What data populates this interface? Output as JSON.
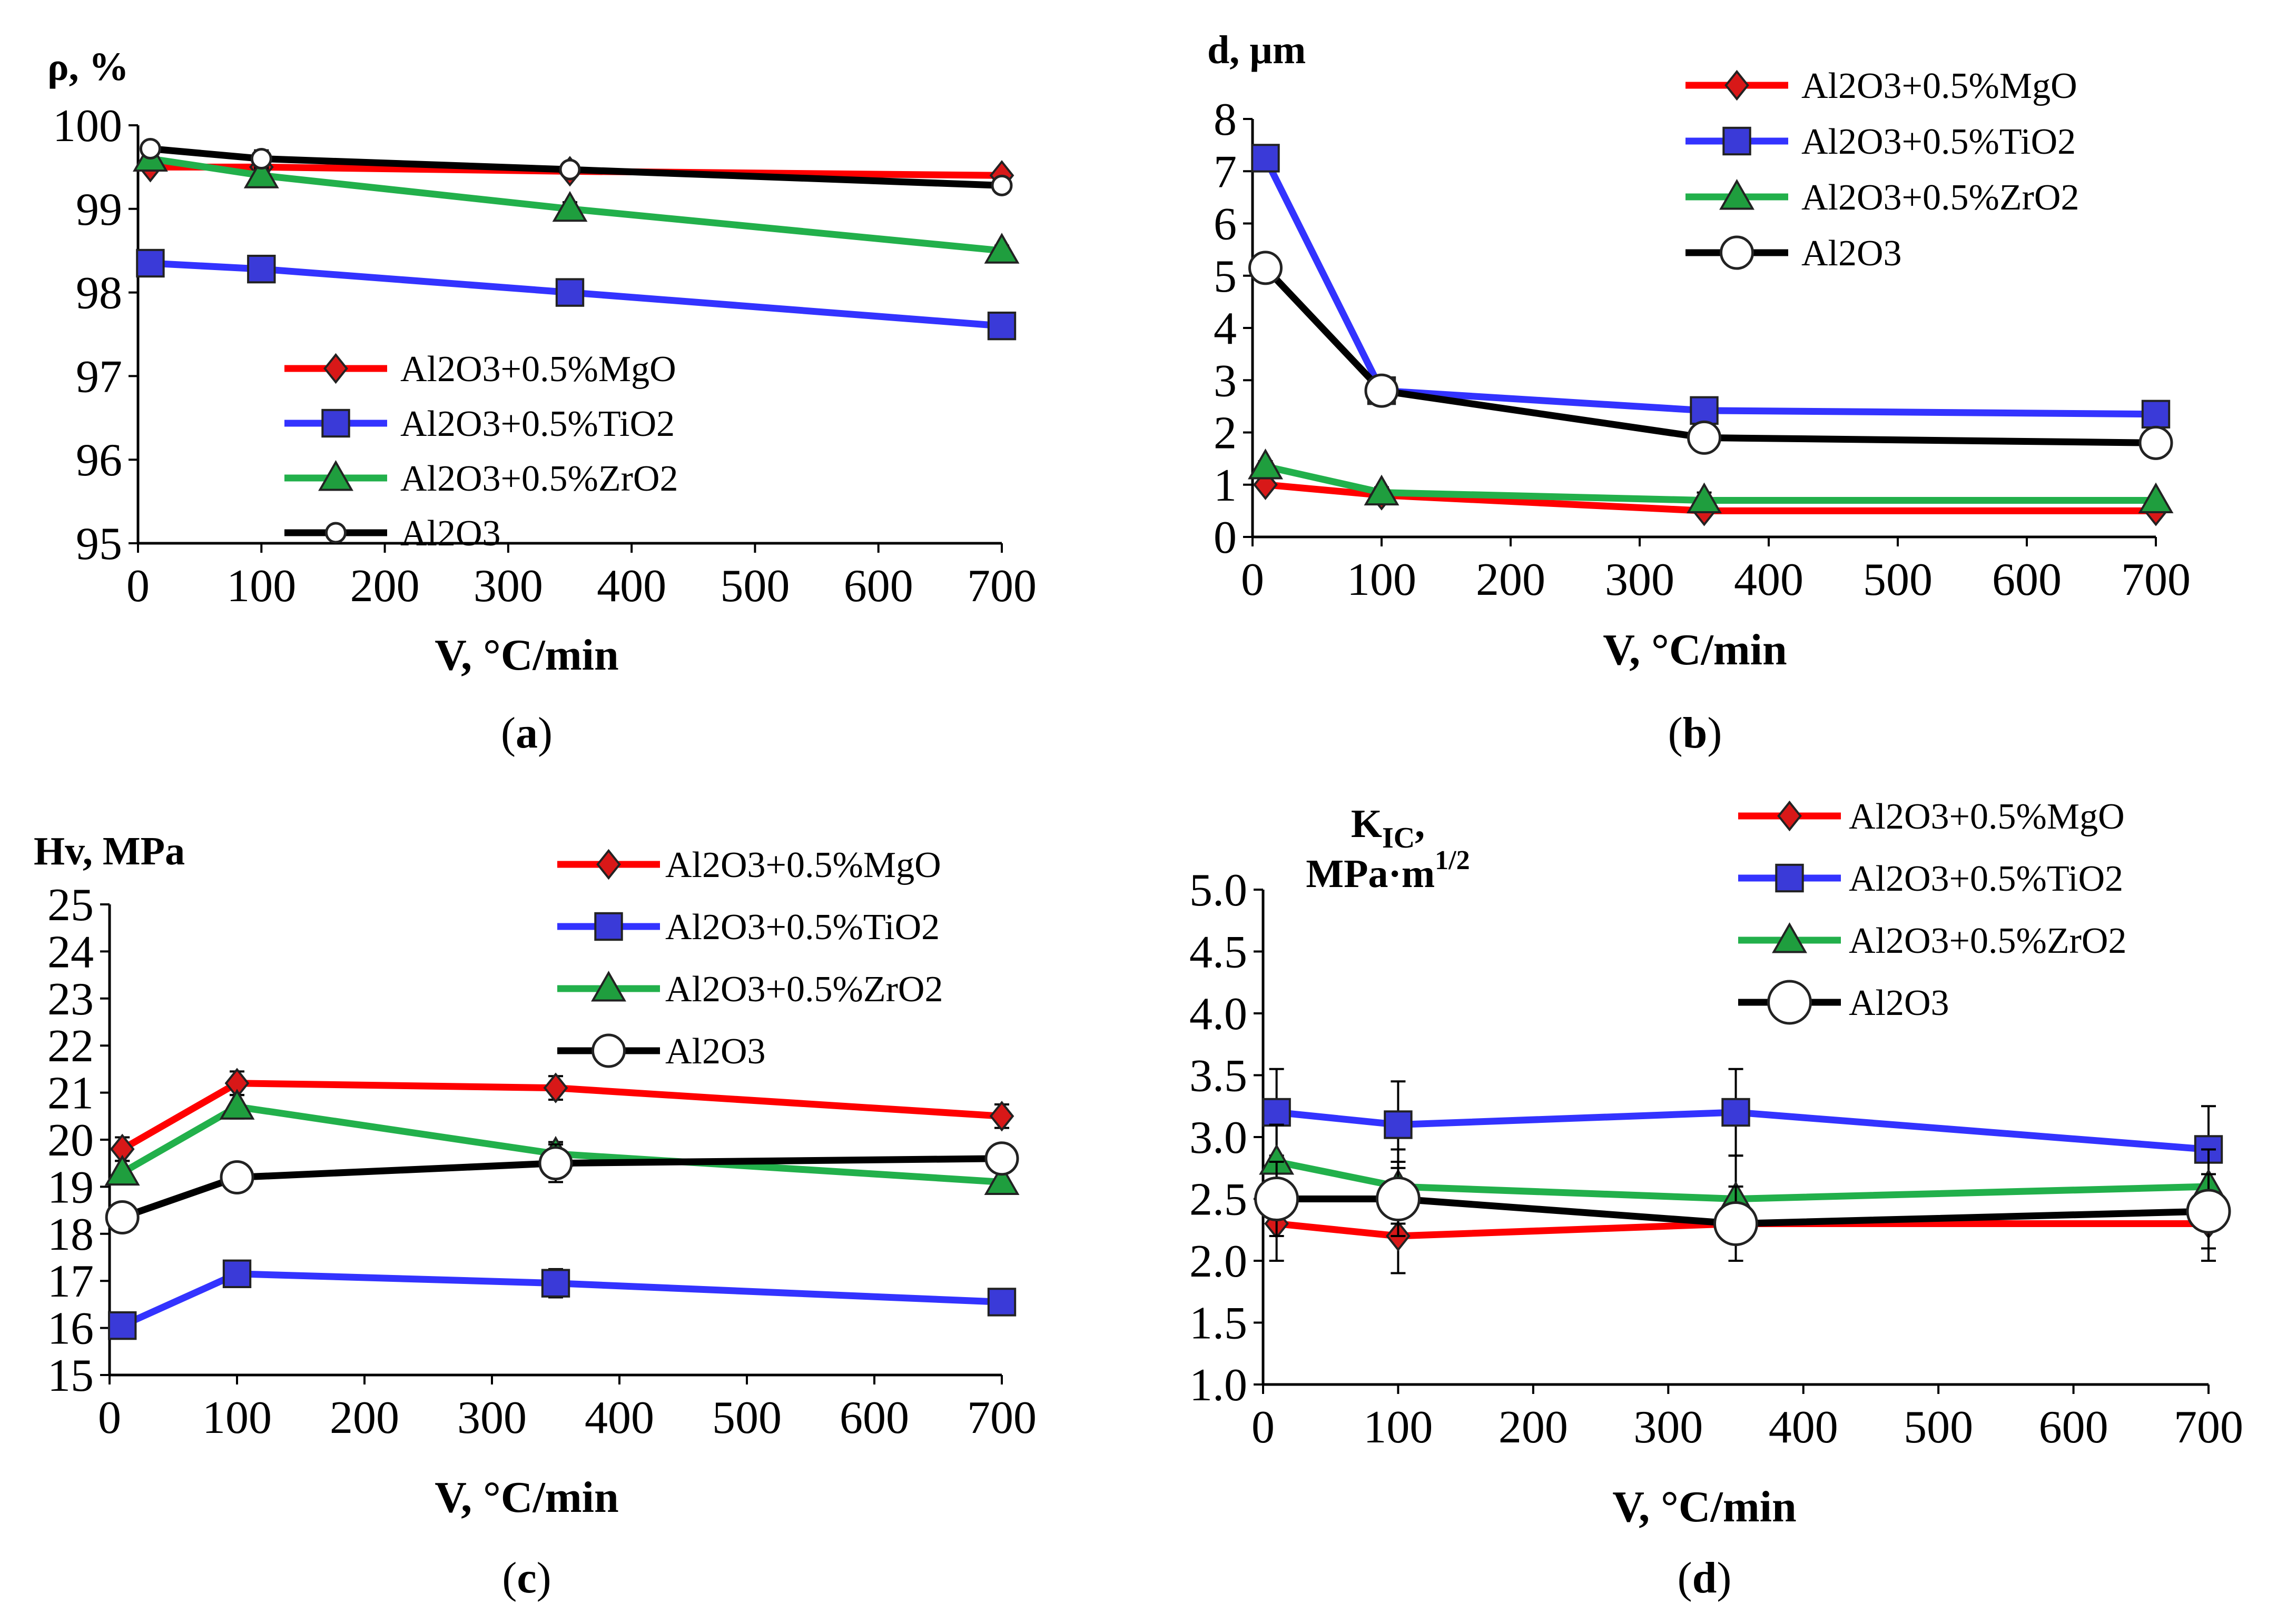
{
  "figure": {
    "colors": {
      "mgo": "#ff0000",
      "tio2": "#3333ff",
      "zro2": "#22b04b",
      "al2o3": "#000000",
      "tio2_fill": "#3a3ad8",
      "zro2_fill": "#1f9e3e",
      "mgo_marker": "#d81818"
    }
  },
  "chart_data": [
    {
      "id": "a",
      "type": "line",
      "caption_letter": "a",
      "ylabel": "ρ, %",
      "xlabel": "V, °C/min",
      "xlim": [
        0,
        700
      ],
      "ylim": [
        95,
        100
      ],
      "x_ticks": [
        0,
        100,
        200,
        300,
        400,
        500,
        600,
        700
      ],
      "y_ticks": [
        95,
        96,
        97,
        98,
        99,
        100
      ],
      "legend_pos": "bottom-left",
      "series": [
        {
          "key": "mgo",
          "name": "Al2O3+0.5%MgO",
          "marker": "diamond",
          "x": [
            10,
            100,
            350,
            700
          ],
          "y": [
            99.5,
            99.5,
            99.45,
            99.4
          ],
          "err": [
            0.05,
            0.05,
            0.05,
            0.05
          ]
        },
        {
          "key": "tio2",
          "name": "Al2O3+0.5%TiO2",
          "marker": "square",
          "x": [
            10,
            100,
            350,
            700
          ],
          "y": [
            98.35,
            98.28,
            98.0,
            97.6
          ],
          "err": [
            0.08,
            0.08,
            0.06,
            0.05
          ]
        },
        {
          "key": "zro2",
          "name": "Al2O3+0.5%ZrO2",
          "marker": "triangle",
          "x": [
            10,
            100,
            350,
            700
          ],
          "y": [
            99.6,
            99.4,
            99.0,
            98.5
          ],
          "err": [
            0.08,
            0.08,
            0.08,
            0.06
          ]
        },
        {
          "key": "al2o3",
          "name": "Al2O3",
          "marker": "circle-small",
          "x": [
            10,
            100,
            350,
            700
          ],
          "y": [
            99.72,
            99.6,
            99.47,
            99.28
          ],
          "err": [
            0.08,
            0.1,
            0.06,
            0.06
          ]
        }
      ]
    },
    {
      "id": "b",
      "type": "line",
      "caption_letter": "b",
      "ylabel": "d, µm",
      "xlabel": "V, °C/min",
      "xlim": [
        0,
        700
      ],
      "ylim": [
        0,
        8
      ],
      "x_ticks": [
        0,
        100,
        200,
        300,
        400,
        500,
        600,
        700
      ],
      "y_ticks": [
        0,
        1,
        2,
        3,
        4,
        5,
        6,
        7,
        8
      ],
      "legend_pos": "top-right",
      "series": [
        {
          "key": "mgo",
          "name": "Al2O3+0.5%MgO",
          "marker": "diamond",
          "x": [
            10,
            100,
            350,
            700
          ],
          "y": [
            1.0,
            0.8,
            0.5,
            0.5
          ],
          "err": [
            0.1,
            0.1,
            0.1,
            0.05
          ]
        },
        {
          "key": "tio2",
          "name": "Al2O3+0.5%TiO2",
          "marker": "square",
          "x": [
            10,
            100,
            350,
            700
          ],
          "y": [
            7.25,
            2.8,
            2.42,
            2.35
          ],
          "err": [
            0.1,
            0.1,
            0.1,
            0.08
          ]
        },
        {
          "key": "zro2",
          "name": "Al2O3+0.5%ZrO2",
          "marker": "triangle",
          "x": [
            10,
            100,
            350,
            700
          ],
          "y": [
            1.35,
            0.85,
            0.7,
            0.7
          ],
          "err": [
            0.1,
            0.1,
            0.15,
            0.05
          ]
        },
        {
          "key": "al2o3",
          "name": "Al2O3",
          "marker": "circle",
          "x": [
            10,
            100,
            350,
            700
          ],
          "y": [
            5.15,
            2.8,
            1.9,
            1.8
          ],
          "err": [
            0.08,
            0.08,
            0.08,
            0.05
          ]
        }
      ]
    },
    {
      "id": "c",
      "type": "line",
      "caption_letter": "c",
      "ylabel": "Hv, MPa",
      "xlabel": "V, °C/min",
      "xlim": [
        0,
        700
      ],
      "ylim": [
        15,
        25
      ],
      "x_ticks": [
        0,
        100,
        200,
        300,
        400,
        500,
        600,
        700
      ],
      "y_ticks": [
        15,
        16,
        17,
        18,
        19,
        20,
        21,
        22,
        23,
        24,
        25
      ],
      "legend_pos": "top-right",
      "series": [
        {
          "key": "mgo",
          "name": "Al2O3+0.5%MgO",
          "marker": "diamond",
          "x": [
            10,
            100,
            350,
            700
          ],
          "y": [
            19.8,
            21.2,
            21.1,
            20.5
          ],
          "err": [
            0.25,
            0.25,
            0.25,
            0.25
          ]
        },
        {
          "key": "tio2",
          "name": "Al2O3+0.5%TiO2",
          "marker": "square",
          "x": [
            10,
            100,
            350,
            700
          ],
          "y": [
            16.05,
            17.15,
            16.95,
            16.55
          ],
          "err": [
            0.25,
            0.25,
            0.3,
            0.25
          ]
        },
        {
          "key": "zro2",
          "name": "Al2O3+0.5%ZrO2",
          "marker": "triangle",
          "x": [
            10,
            100,
            350,
            700
          ],
          "y": [
            19.3,
            20.7,
            19.7,
            19.1
          ],
          "err": [
            0.25,
            0.25,
            0.25,
            0.25
          ]
        },
        {
          "key": "al2o3",
          "name": "Al2O3",
          "marker": "circle",
          "x": [
            10,
            100,
            350,
            700
          ],
          "y": [
            18.35,
            19.2,
            19.5,
            19.6
          ],
          "err": [
            0.25,
            0.25,
            0.4,
            0.25
          ]
        }
      ]
    },
    {
      "id": "d",
      "type": "line",
      "caption_letter": "d",
      "ylabel_line1_main": "K",
      "ylabel_line1_sub": "IC",
      "ylabel_line1_tail": ",",
      "ylabel_line2_main": "MPa·m",
      "ylabel_line2_sup": "1/2",
      "xlabel": "V, °C/min",
      "xlim": [
        0,
        700
      ],
      "ylim": [
        1.0,
        5.0
      ],
      "x_ticks": [
        0,
        100,
        200,
        300,
        400,
        500,
        600,
        700
      ],
      "y_ticks": [
        "1.0",
        "1.5",
        "2.0",
        "2.5",
        "3.0",
        "3.5",
        "4.0",
        "4.5",
        "5.0"
      ],
      "legend_pos": "top-right",
      "series": [
        {
          "key": "mgo",
          "name": "Al2O3+0.5%MgO",
          "marker": "diamond",
          "x": [
            10,
            100,
            350,
            700
          ],
          "y": [
            2.3,
            2.2,
            2.3,
            2.3
          ],
          "err": [
            0.3,
            0.3,
            0.3,
            0.3
          ]
        },
        {
          "key": "tio2",
          "name": "Al2O3+0.5%TiO2",
          "marker": "square",
          "x": [
            10,
            100,
            350,
            700
          ],
          "y": [
            3.2,
            3.1,
            3.2,
            2.9
          ],
          "err": [
            0.35,
            0.35,
            0.35,
            0.35
          ]
        },
        {
          "key": "zro2",
          "name": "Al2O3+0.5%ZrO2",
          "marker": "triangle",
          "x": [
            10,
            100,
            350,
            700
          ],
          "y": [
            2.8,
            2.6,
            2.5,
            2.6
          ],
          "err": [
            0.3,
            0.3,
            0.35,
            0.3
          ]
        },
        {
          "key": "al2o3",
          "name": "Al2O3",
          "marker": "circle-large",
          "x": [
            10,
            100,
            350,
            700
          ],
          "y": [
            2.5,
            2.5,
            2.3,
            2.4
          ],
          "err": [
            0.3,
            0.3,
            0.3,
            0.3
          ]
        }
      ]
    }
  ]
}
